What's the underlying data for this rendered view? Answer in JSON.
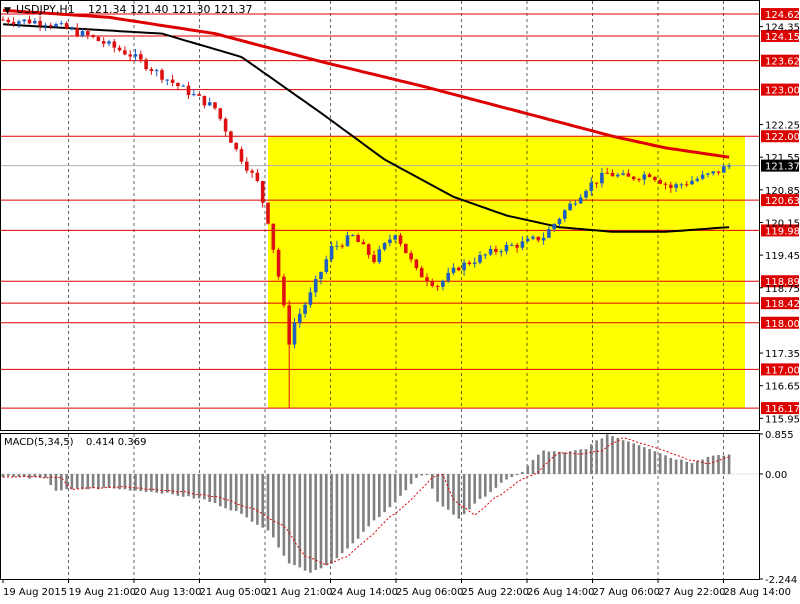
{
  "chart_header": {
    "arrow": "▼",
    "symbol_text": "USDJPY,H1",
    "ohlc_text": "121.34 121.40 121.30 121.37"
  },
  "macd_header": {
    "label_text": "MACD(5,34,5)",
    "values_text": "0.414 0.369"
  },
  "colors": {
    "ma_fast": "#000000",
    "ma_slow": "#dd0000",
    "zone_fill": "#ffff00",
    "level_line": "#dd0000",
    "level_badge": "#dd0000",
    "current_price_badge": "#000000",
    "candle_bull": "#1f5fbf",
    "candle_bear": "#dd1111",
    "histogram": "#808080",
    "signal": "#dd0000"
  },
  "chart_data": [
    {
      "type": "candlestick",
      "symbol": "USDJPY",
      "timeframe": "H1",
      "ylim": [
        115.7,
        124.9
      ],
      "y_axis_ticks": [
        "124.35",
        "122.25",
        "121.55",
        "120.85",
        "120.15",
        "119.45",
        "118.75",
        "117.35",
        "116.65",
        "115.95"
      ],
      "horizontal_levels": [
        "124.62",
        "124.15",
        "123.62",
        "123.00",
        "122.00",
        "120.63",
        "119.98",
        "118.89",
        "118.42",
        "118.00",
        "117.00",
        "116.17"
      ],
      "current_price": "121.37",
      "highlight_zone": {
        "from": 116.17,
        "to": 122.0
      },
      "x_axis_labels": [
        "19 Aug 2015",
        "19 Aug 21:00",
        "20 Aug 13:00",
        "21 Aug 05:00",
        "21 Aug 21:00",
        "24 Aug 14:00",
        "25 Aug 06:00",
        "25 Aug 22:00",
        "26 Aug 14:00",
        "27 Aug 06:00",
        "27 Aug 22:00",
        "28 Aug 14:00"
      ],
      "price_path": [
        [
          0,
          124.5
        ],
        [
          8,
          124.45
        ],
        [
          16,
          124.15
        ],
        [
          24,
          123.75
        ],
        [
          32,
          123.15
        ],
        [
          40,
          122.6
        ],
        [
          44,
          121.7
        ],
        [
          48,
          121.0
        ],
        [
          50,
          120.2
        ],
        [
          52,
          119.0
        ],
        [
          54,
          117.6
        ],
        [
          55,
          118.0
        ],
        [
          58,
          118.6
        ],
        [
          62,
          119.6
        ],
        [
          66,
          119.85
        ],
        [
          70,
          119.35
        ],
        [
          74,
          119.95
        ],
        [
          78,
          119.1
        ],
        [
          82,
          118.8
        ],
        [
          86,
          119.2
        ],
        [
          90,
          119.4
        ],
        [
          94,
          119.6
        ],
        [
          98,
          119.7
        ],
        [
          102,
          119.85
        ],
        [
          106,
          120.4
        ],
        [
          110,
          120.9
        ],
        [
          114,
          121.2
        ],
        [
          118,
          121.1
        ],
        [
          122,
          121.2
        ],
        [
          126,
          120.9
        ],
        [
          130,
          121.05
        ],
        [
          134,
          121.2
        ],
        [
          137,
          121.37
        ]
      ],
      "spike_low_index": 54,
      "series": [
        {
          "name": "",
          "color_key": "ma_fast",
          "points": [
            [
              0,
              124.4
            ],
            [
              30,
              124.2
            ],
            [
              45,
              123.7
            ],
            [
              60,
              122.5
            ],
            [
              72,
              121.5
            ],
            [
              85,
              120.7
            ],
            [
              95,
              120.3
            ],
            [
              105,
              120.05
            ],
            [
              115,
              119.95
            ],
            [
              125,
              119.95
            ],
            [
              137,
              120.05
            ]
          ]
        },
        {
          "name": "",
          "color_key": "ma_slow",
          "points": [
            [
              0,
              124.7
            ],
            [
              20,
              124.55
            ],
            [
              40,
              124.2
            ],
            [
              60,
              123.6
            ],
            [
              80,
              123.05
            ],
            [
              100,
              122.45
            ],
            [
              115,
              122.0
            ],
            [
              125,
              121.75
            ],
            [
              137,
              121.55
            ]
          ]
        }
      ]
    },
    {
      "type": "bar",
      "indicator": "MACD(5,34,5)",
      "ylim": [
        -2.244,
        0.855
      ],
      "y_axis_ticks": [
        "0.855",
        "0.00",
        "-2.244"
      ],
      "histogram_path": [
        [
          0,
          -0.05
        ],
        [
          8,
          -0.1
        ],
        [
          10,
          -0.35
        ],
        [
          20,
          -0.3
        ],
        [
          30,
          -0.4
        ],
        [
          38,
          -0.55
        ],
        [
          44,
          -0.8
        ],
        [
          50,
          -1.2
        ],
        [
          54,
          -1.9
        ],
        [
          58,
          -2.1
        ],
        [
          62,
          -1.9
        ],
        [
          66,
          -1.5
        ],
        [
          70,
          -1.0
        ],
        [
          74,
          -0.6
        ],
        [
          78,
          -0.1
        ],
        [
          80,
          0.0
        ],
        [
          82,
          -0.6
        ],
        [
          86,
          -0.95
        ],
        [
          90,
          -0.55
        ],
        [
          94,
          -0.2
        ],
        [
          98,
          0.05
        ],
        [
          100,
          0.3
        ],
        [
          102,
          0.5
        ],
        [
          106,
          0.45
        ],
        [
          110,
          0.55
        ],
        [
          114,
          0.85
        ],
        [
          118,
          0.7
        ],
        [
          122,
          0.55
        ],
        [
          126,
          0.35
        ],
        [
          130,
          0.25
        ],
        [
          134,
          0.4
        ],
        [
          137,
          0.414
        ]
      ],
      "signal_lag": 3
    }
  ]
}
